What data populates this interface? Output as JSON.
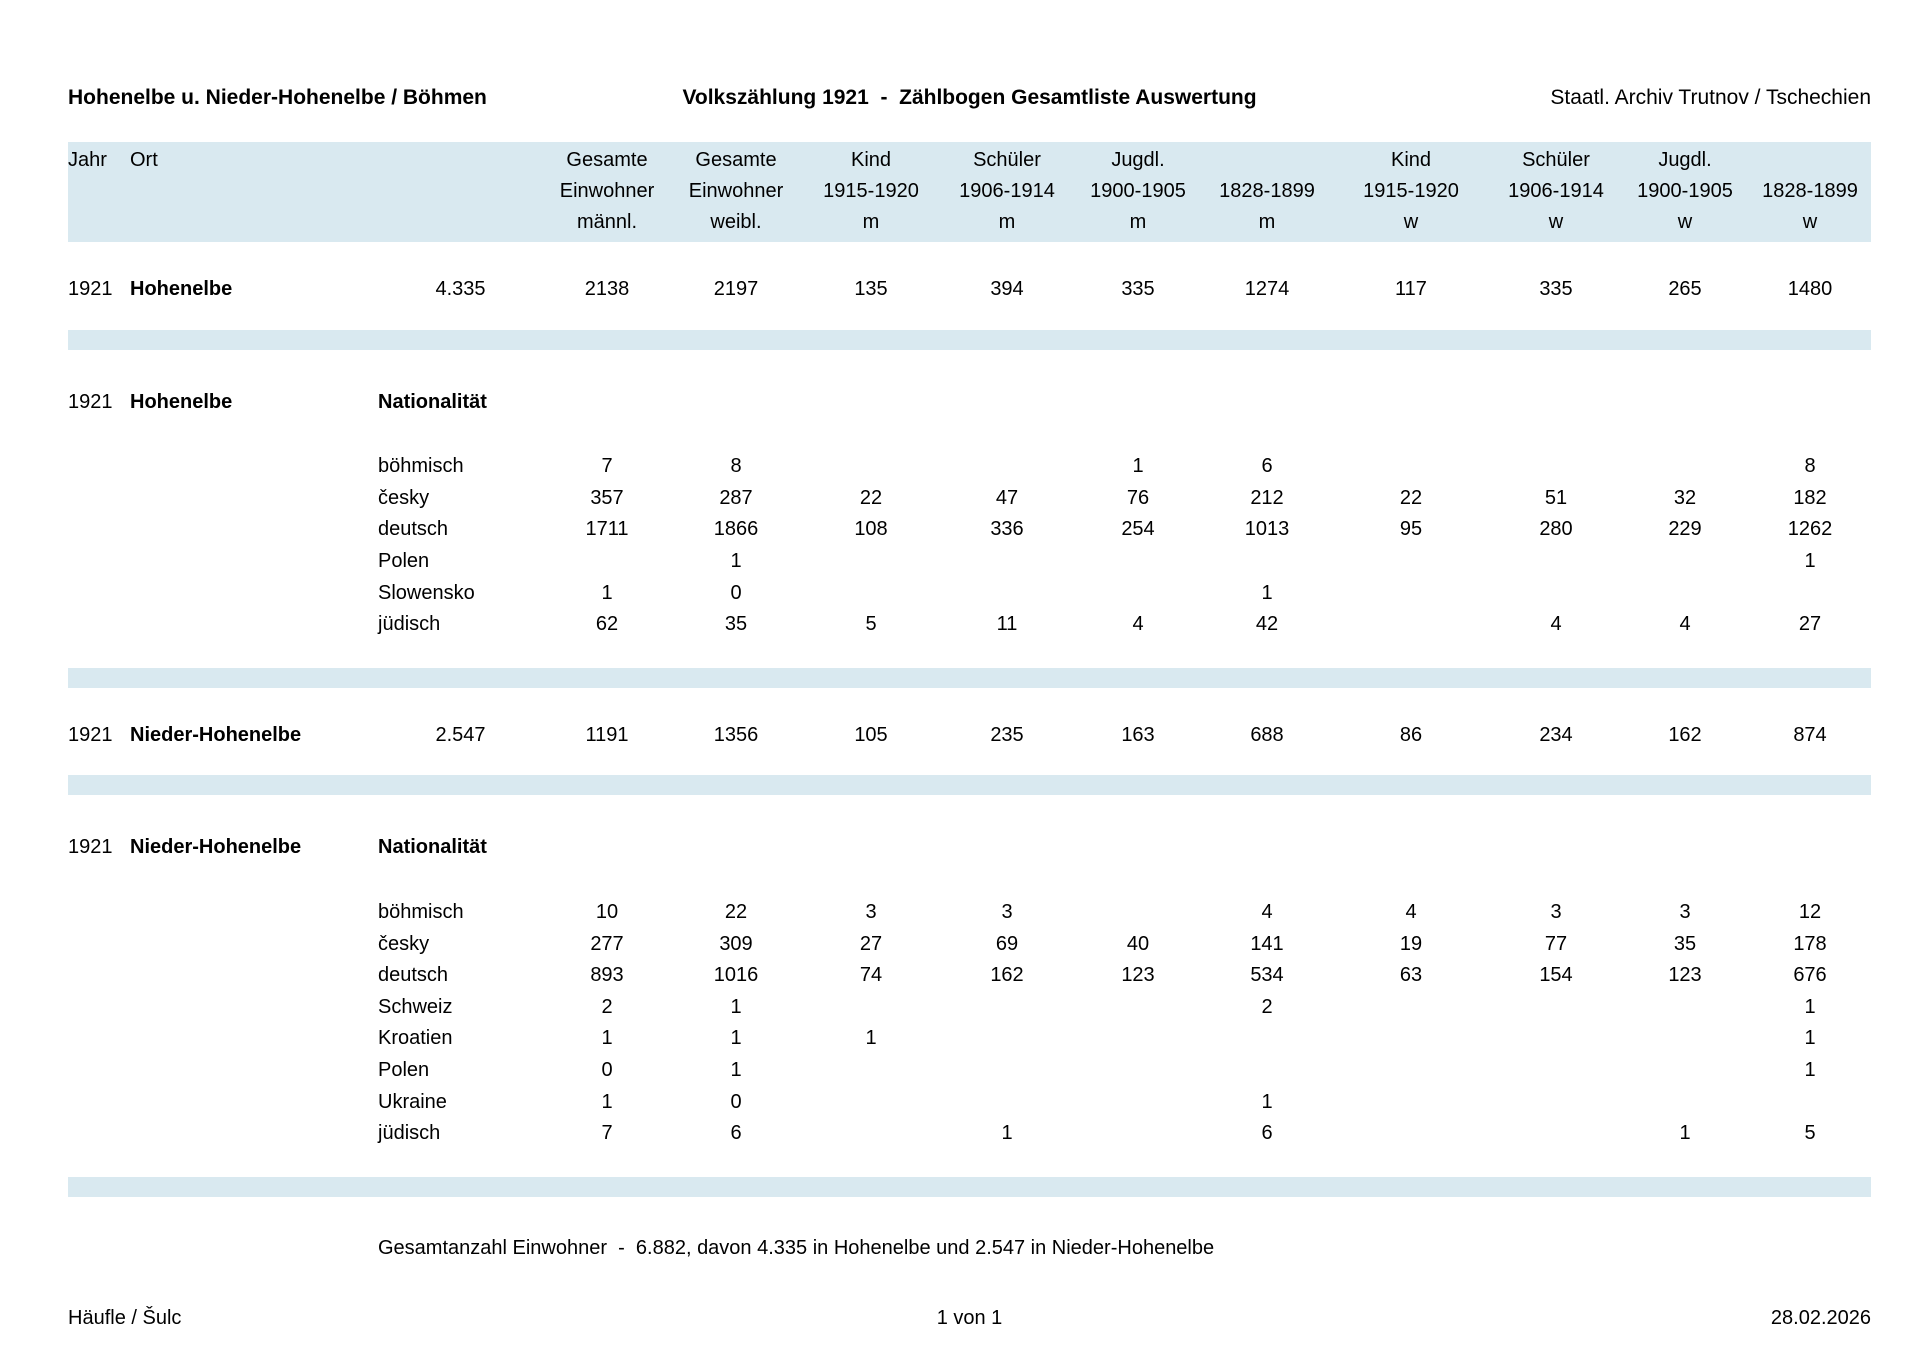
{
  "titles": {
    "left": "Hohenelbe u. Nieder-Hohenelbe / Böhmen",
    "center": "Volkszählung 1921  -  Zählbogen Gesamtliste Auswertung",
    "right": "Staatl. Archiv Trutnov / Tschechien"
  },
  "table": {
    "header_rows": [
      [
        "Jahr",
        "Ort",
        "",
        "Gesamte",
        "Gesamte",
        "Kind",
        "Schüler",
        "Jugdl.",
        "",
        "Kind",
        "Schüler",
        "Jugdl.",
        ""
      ],
      [
        "",
        "",
        "",
        "Einwohner",
        "Einwohner",
        "1915-1920",
        "1906-1914",
        "1900-1905",
        "1828-1899",
        "1915-1920",
        "1906-1914",
        "1900-1905",
        "1828-1899"
      ],
      [
        "",
        "",
        "",
        "männl.",
        "weibl.",
        "m",
        "m",
        "m",
        "m",
        "w",
        "w",
        "w",
        "w"
      ]
    ],
    "sections": [
      {
        "type": "city",
        "jahr": "1921",
        "ort": "Hohenelbe",
        "total": "4.335",
        "values": [
          "2138",
          "2197",
          "135",
          "394",
          "335",
          "1274",
          "117",
          "335",
          "265",
          "1480"
        ]
      },
      {
        "type": "nationality",
        "jahr": "1921",
        "ort": "Hohenelbe",
        "label": "Nationalität",
        "rows": [
          {
            "name": "böhmisch",
            "values": [
              "7",
              "8",
              "",
              "",
              "1",
              "6",
              "",
              "",
              "",
              "8"
            ]
          },
          {
            "name": "česky",
            "values": [
              "357",
              "287",
              "22",
              "47",
              "76",
              "212",
              "22",
              "51",
              "32",
              "182"
            ]
          },
          {
            "name": "deutsch",
            "values": [
              "1711",
              "1866",
              "108",
              "336",
              "254",
              "1013",
              "95",
              "280",
              "229",
              "1262"
            ]
          },
          {
            "name": "Polen",
            "values": [
              "",
              "1",
              "",
              "",
              "",
              "",
              "",
              "",
              "",
              "1"
            ]
          },
          {
            "name": "Slowensko",
            "values": [
              "1",
              "0",
              "",
              "",
              "",
              "1",
              "",
              "",
              "",
              ""
            ]
          },
          {
            "name": "jüdisch",
            "values": [
              "62",
              "35",
              "5",
              "11",
              "4",
              "42",
              "",
              "4",
              "4",
              "27"
            ]
          }
        ]
      },
      {
        "type": "city",
        "jahr": "1921",
        "ort": "Nieder-Hohenelbe",
        "total": "2.547",
        "values": [
          "1191",
          "1356",
          "105",
          "235",
          "163",
          "688",
          "86",
          "234",
          "162",
          "874"
        ]
      },
      {
        "type": "nationality",
        "jahr": "1921",
        "ort": "Nieder-Hohenelbe",
        "label": "Nationalität",
        "rows": [
          {
            "name": "böhmisch",
            "values": [
              "10",
              "22",
              "3",
              "3",
              "",
              "4",
              "4",
              "3",
              "3",
              "12"
            ]
          },
          {
            "name": "česky",
            "values": [
              "277",
              "309",
              "27",
              "69",
              "40",
              "141",
              "19",
              "77",
              "35",
              "178"
            ]
          },
          {
            "name": "deutsch",
            "values": [
              "893",
              "1016",
              "74",
              "162",
              "123",
              "534",
              "63",
              "154",
              "123",
              "676"
            ]
          },
          {
            "name": "Schweiz",
            "values": [
              "2",
              "1",
              "",
              "",
              "",
              "2",
              "",
              "",
              "",
              "1"
            ]
          },
          {
            "name": "Kroatien",
            "values": [
              "1",
              "1",
              "1",
              "",
              "",
              "",
              "",
              "",
              "",
              "1"
            ]
          },
          {
            "name": "Polen",
            "values": [
              "0",
              "1",
              "",
              "",
              "",
              "",
              "",
              "",
              "",
              "1"
            ]
          },
          {
            "name": "Ukraine",
            "values": [
              "1",
              "0",
              "",
              "",
              "",
              "1",
              "",
              "",
              "",
              ""
            ]
          },
          {
            "name": "jüdisch",
            "values": [
              "7",
              "6",
              "",
              "1",
              "",
              "6",
              "",
              "",
              "1",
              "5"
            ]
          }
        ]
      }
    ]
  },
  "summary_line": "Gesamtanzahl Einwohner  -  6.882, davon 4.335 in Hohenelbe und 2.547 in Nieder-Hohenelbe",
  "footer": {
    "left": "Häufle / Šulc",
    "center": "1 von 1",
    "right": "28.02.2026"
  },
  "colors": {
    "band": "#d9e9f0",
    "text": "#000000"
  }
}
